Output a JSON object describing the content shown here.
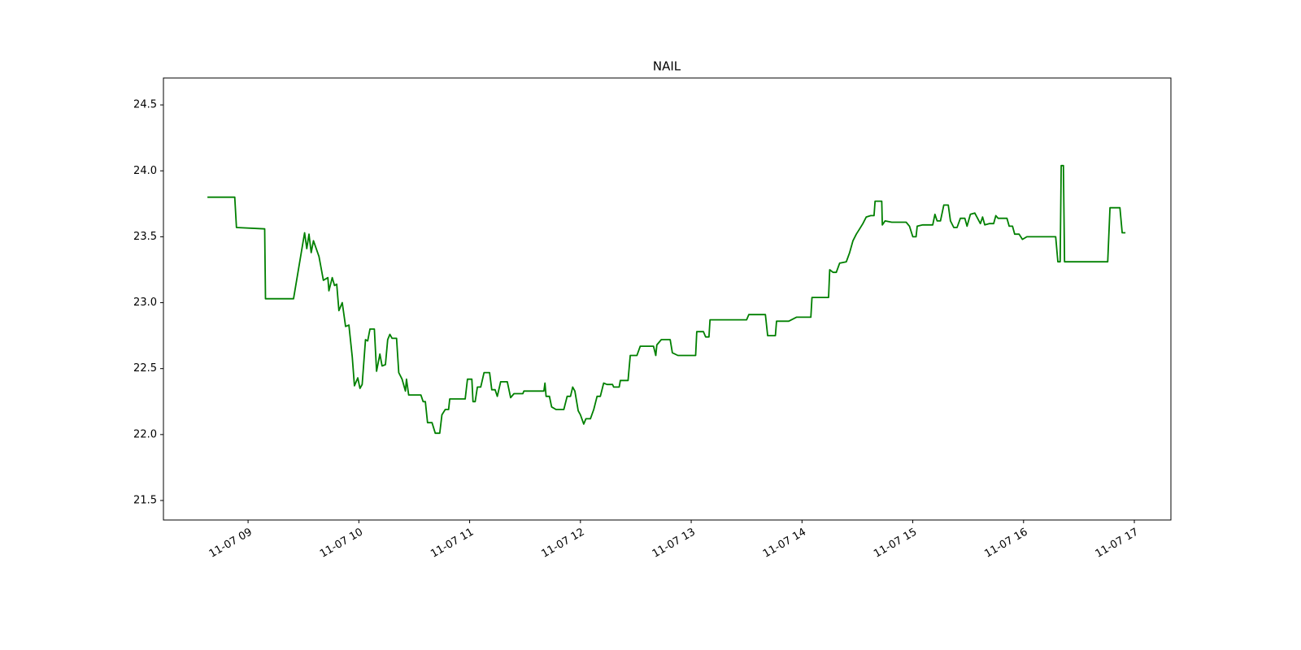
{
  "chart_data": {
    "type": "line",
    "title": "NAIL",
    "x": [
      8.633,
      8.88,
      8.895,
      9.15,
      9.157,
      9.41,
      9.51,
      9.53,
      9.55,
      9.57,
      9.59,
      9.64,
      9.68,
      9.72,
      9.73,
      9.76,
      9.78,
      9.8,
      9.82,
      9.85,
      9.88,
      9.91,
      9.94,
      9.96,
      9.99,
      10.01,
      10.03,
      10.06,
      10.08,
      10.1,
      10.14,
      10.16,
      10.19,
      10.21,
      10.24,
      10.26,
      10.28,
      10.3,
      10.34,
      10.36,
      10.39,
      10.42,
      10.43,
      10.45,
      10.56,
      10.58,
      10.6,
      10.62,
      10.66,
      10.69,
      10.73,
      10.75,
      10.78,
      10.81,
      10.82,
      10.96,
      10.98,
      11.02,
      11.03,
      11.05,
      11.07,
      11.1,
      11.13,
      11.18,
      11.2,
      11.23,
      11.25,
      11.28,
      11.34,
      11.37,
      11.4,
      11.48,
      11.49,
      11.67,
      11.68,
      11.69,
      11.72,
      11.74,
      11.78,
      11.85,
      11.88,
      11.91,
      11.93,
      11.95,
      11.98,
      12.0,
      12.03,
      12.05,
      12.09,
      12.12,
      12.15,
      12.18,
      12.21,
      12.24,
      12.29,
      12.3,
      12.35,
      12.36,
      12.43,
      12.45,
      12.51,
      12.54,
      12.66,
      12.68,
      12.69,
      12.73,
      12.81,
      12.83,
      12.88,
      13.04,
      13.05,
      13.11,
      13.13,
      13.16,
      13.17,
      13.2,
      13.5,
      13.52,
      13.67,
      13.69,
      13.76,
      13.77,
      13.88,
      13.95,
      14.08,
      14.09,
      14.24,
      14.25,
      14.28,
      14.31,
      14.34,
      14.4,
      14.43,
      14.46,
      14.49,
      14.52,
      14.55,
      14.58,
      14.62,
      14.65,
      14.66,
      14.72,
      14.725,
      14.75,
      14.81,
      14.94,
      14.97,
      15.0,
      15.03,
      15.04,
      15.09,
      15.18,
      15.2,
      15.22,
      15.25,
      15.28,
      15.32,
      15.34,
      15.37,
      15.4,
      15.43,
      15.47,
      15.49,
      15.52,
      15.56,
      15.61,
      15.63,
      15.65,
      15.69,
      15.73,
      15.75,
      15.77,
      15.85,
      15.87,
      15.9,
      15.92,
      15.96,
      15.99,
      16.03,
      16.29,
      16.31,
      16.33,
      16.34,
      16.36,
      16.37,
      16.76,
      16.78,
      16.87,
      16.89,
      16.92
    ],
    "series": [
      {
        "name": "NAIL",
        "color": "#008000",
        "values": [
          23.8,
          23.8,
          23.57,
          23.56,
          23.03,
          23.03,
          23.53,
          23.41,
          23.52,
          23.38,
          23.47,
          23.35,
          23.17,
          23.19,
          23.09,
          23.19,
          23.13,
          23.14,
          22.94,
          23.0,
          22.82,
          22.83,
          22.59,
          22.37,
          22.43,
          22.35,
          22.38,
          22.72,
          22.71,
          22.8,
          22.8,
          22.48,
          22.61,
          22.52,
          22.53,
          22.72,
          22.76,
          22.73,
          22.73,
          22.47,
          22.42,
          22.33,
          22.42,
          22.3,
          22.3,
          22.25,
          22.25,
          22.09,
          22.09,
          22.01,
          22.01,
          22.15,
          22.19,
          22.19,
          22.27,
          22.27,
          22.42,
          22.42,
          22.25,
          22.25,
          22.36,
          22.36,
          22.47,
          22.47,
          22.34,
          22.34,
          22.29,
          22.4,
          22.4,
          22.28,
          22.31,
          22.31,
          22.33,
          22.33,
          22.39,
          22.29,
          22.29,
          22.21,
          22.19,
          22.19,
          22.29,
          22.29,
          22.36,
          22.33,
          22.18,
          22.15,
          22.08,
          22.12,
          22.12,
          22.19,
          22.29,
          22.29,
          22.39,
          22.38,
          22.38,
          22.36,
          22.36,
          22.41,
          22.41,
          22.6,
          22.6,
          22.67,
          22.67,
          22.6,
          22.68,
          22.72,
          22.72,
          22.62,
          22.6,
          22.6,
          22.78,
          22.78,
          22.74,
          22.74,
          22.87,
          22.87,
          22.87,
          22.91,
          22.91,
          22.75,
          22.75,
          22.86,
          22.86,
          22.89,
          22.89,
          23.04,
          23.04,
          23.25,
          23.23,
          23.23,
          23.3,
          23.31,
          23.38,
          23.47,
          23.52,
          23.56,
          23.6,
          23.65,
          23.66,
          23.66,
          23.77,
          23.77,
          23.59,
          23.62,
          23.61,
          23.61,
          23.58,
          23.5,
          23.5,
          23.58,
          23.59,
          23.59,
          23.67,
          23.62,
          23.62,
          23.74,
          23.74,
          23.62,
          23.57,
          23.57,
          23.64,
          23.64,
          23.58,
          23.67,
          23.68,
          23.6,
          23.65,
          23.59,
          23.6,
          23.6,
          23.66,
          23.64,
          23.64,
          23.58,
          23.58,
          23.52,
          23.52,
          23.48,
          23.5,
          23.5,
          23.31,
          23.31,
          24.04,
          24.04,
          23.31,
          23.31,
          23.72,
          23.72,
          23.53,
          23.53
        ]
      }
    ],
    "xlim": [
      8.236,
      17.33
    ],
    "xticks": [
      {
        "value": 9,
        "label": "11-07 09"
      },
      {
        "value": 10,
        "label": "11-07 10"
      },
      {
        "value": 11,
        "label": "11-07 11"
      },
      {
        "value": 12,
        "label": "11-07 12"
      },
      {
        "value": 13,
        "label": "11-07 13"
      },
      {
        "value": 14,
        "label": "11-07 14"
      },
      {
        "value": 15,
        "label": "11-07 15"
      },
      {
        "value": 16,
        "label": "11-07 16"
      },
      {
        "value": 17,
        "label": "11-07 17"
      }
    ],
    "ylim": [
      21.352,
      24.704
    ],
    "yticks": [
      21.5,
      {
        "value": 22,
        "label": "22.0"
      },
      22.5,
      {
        "value": 23,
        "label": "23.0"
      },
      23.5,
      {
        "value": 24,
        "label": "24.0"
      },
      24.5
    ],
    "grid": false
  }
}
